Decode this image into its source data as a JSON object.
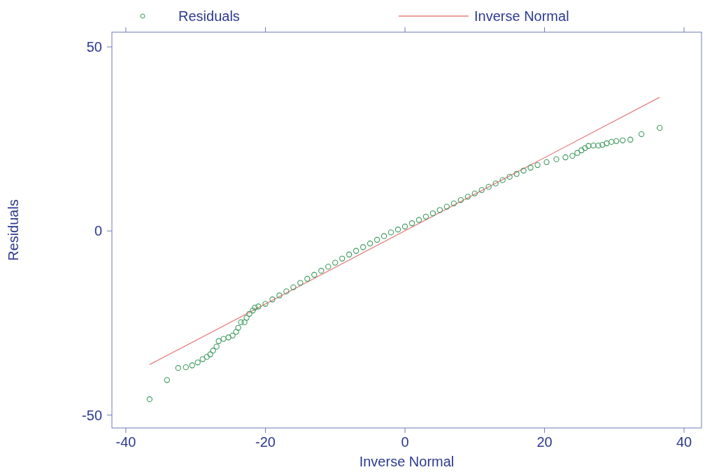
{
  "chart_data": {
    "type": "scatter",
    "xlabel": "Inverse Normal",
    "ylabel": "Residuals",
    "xlim": [
      -42,
      42.5
    ],
    "ylim": [
      -53.5,
      54
    ],
    "xticks": [
      -40,
      -20,
      0,
      20,
      40
    ],
    "yticks": [
      -50,
      0,
      50
    ],
    "grid": false,
    "legend": "top",
    "series": [
      {
        "name": "Residuals",
        "marker": "circle",
        "color": "#3a9a5a",
        "x": [
          -36.6,
          -34.1,
          -32.5,
          -31.4,
          -30.5,
          -29.7,
          -29,
          -28.4,
          -27.9,
          -27.5,
          -27,
          -26.7,
          -26,
          -25.3,
          -24.7,
          -24.2,
          -23.9,
          -23.5,
          -23,
          -22.7,
          -22.3,
          -21.8,
          -21.5,
          -21,
          -20,
          -19,
          -18,
          -17,
          -16,
          -15,
          -14,
          -13,
          -12,
          -11,
          -10,
          -9,
          -8,
          -7,
          -6,
          -5,
          -4,
          -3,
          -2,
          -1,
          0,
          1,
          2,
          3,
          4,
          5,
          6,
          7,
          8,
          9,
          10,
          11,
          12,
          13,
          14,
          15,
          16,
          17,
          18,
          19,
          20.3,
          21.7,
          23,
          24,
          24.7,
          25.3,
          25.8,
          26.3,
          27,
          27.7,
          28.3,
          28.9,
          29.6,
          30.3,
          31.2,
          32.3,
          33.9,
          36.5
        ],
        "values": [
          -45.7,
          -40.5,
          -37.2,
          -37,
          -36.5,
          -35.7,
          -34.8,
          -34.2,
          -33.5,
          -32.5,
          -31.4,
          -29.9,
          -29.3,
          -28.9,
          -28.4,
          -27.4,
          -26.3,
          -24.8,
          -24.8,
          -23.6,
          -22.5,
          -21.6,
          -20.8,
          -20.5,
          -19.8,
          -18.6,
          -17.5,
          -16.4,
          -15.3,
          -14.1,
          -13,
          -11.9,
          -10.8,
          -9.7,
          -8.6,
          -7.5,
          -6.4,
          -5.4,
          -4.4,
          -3.4,
          -2.4,
          -1.4,
          -0.4,
          0.4,
          1.2,
          2.1,
          3,
          3.9,
          4.8,
          5.7,
          6.6,
          7.5,
          8.4,
          9.3,
          10.2,
          11.1,
          12,
          12.9,
          13.8,
          14.7,
          15.5,
          16.4,
          17.2,
          17.9,
          18.7,
          19.5,
          20,
          20.4,
          21.2,
          21.9,
          22.5,
          23.1,
          23.2,
          23.2,
          23.4,
          23.8,
          24.2,
          24.4,
          24.6,
          24.8,
          26.3,
          28
        ]
      },
      {
        "name": "Inverse Normal",
        "type": "line",
        "color": "#e88080",
        "x": [
          -36.6,
          36.5
        ],
        "values": [
          -36.3,
          36.3
        ]
      }
    ]
  }
}
